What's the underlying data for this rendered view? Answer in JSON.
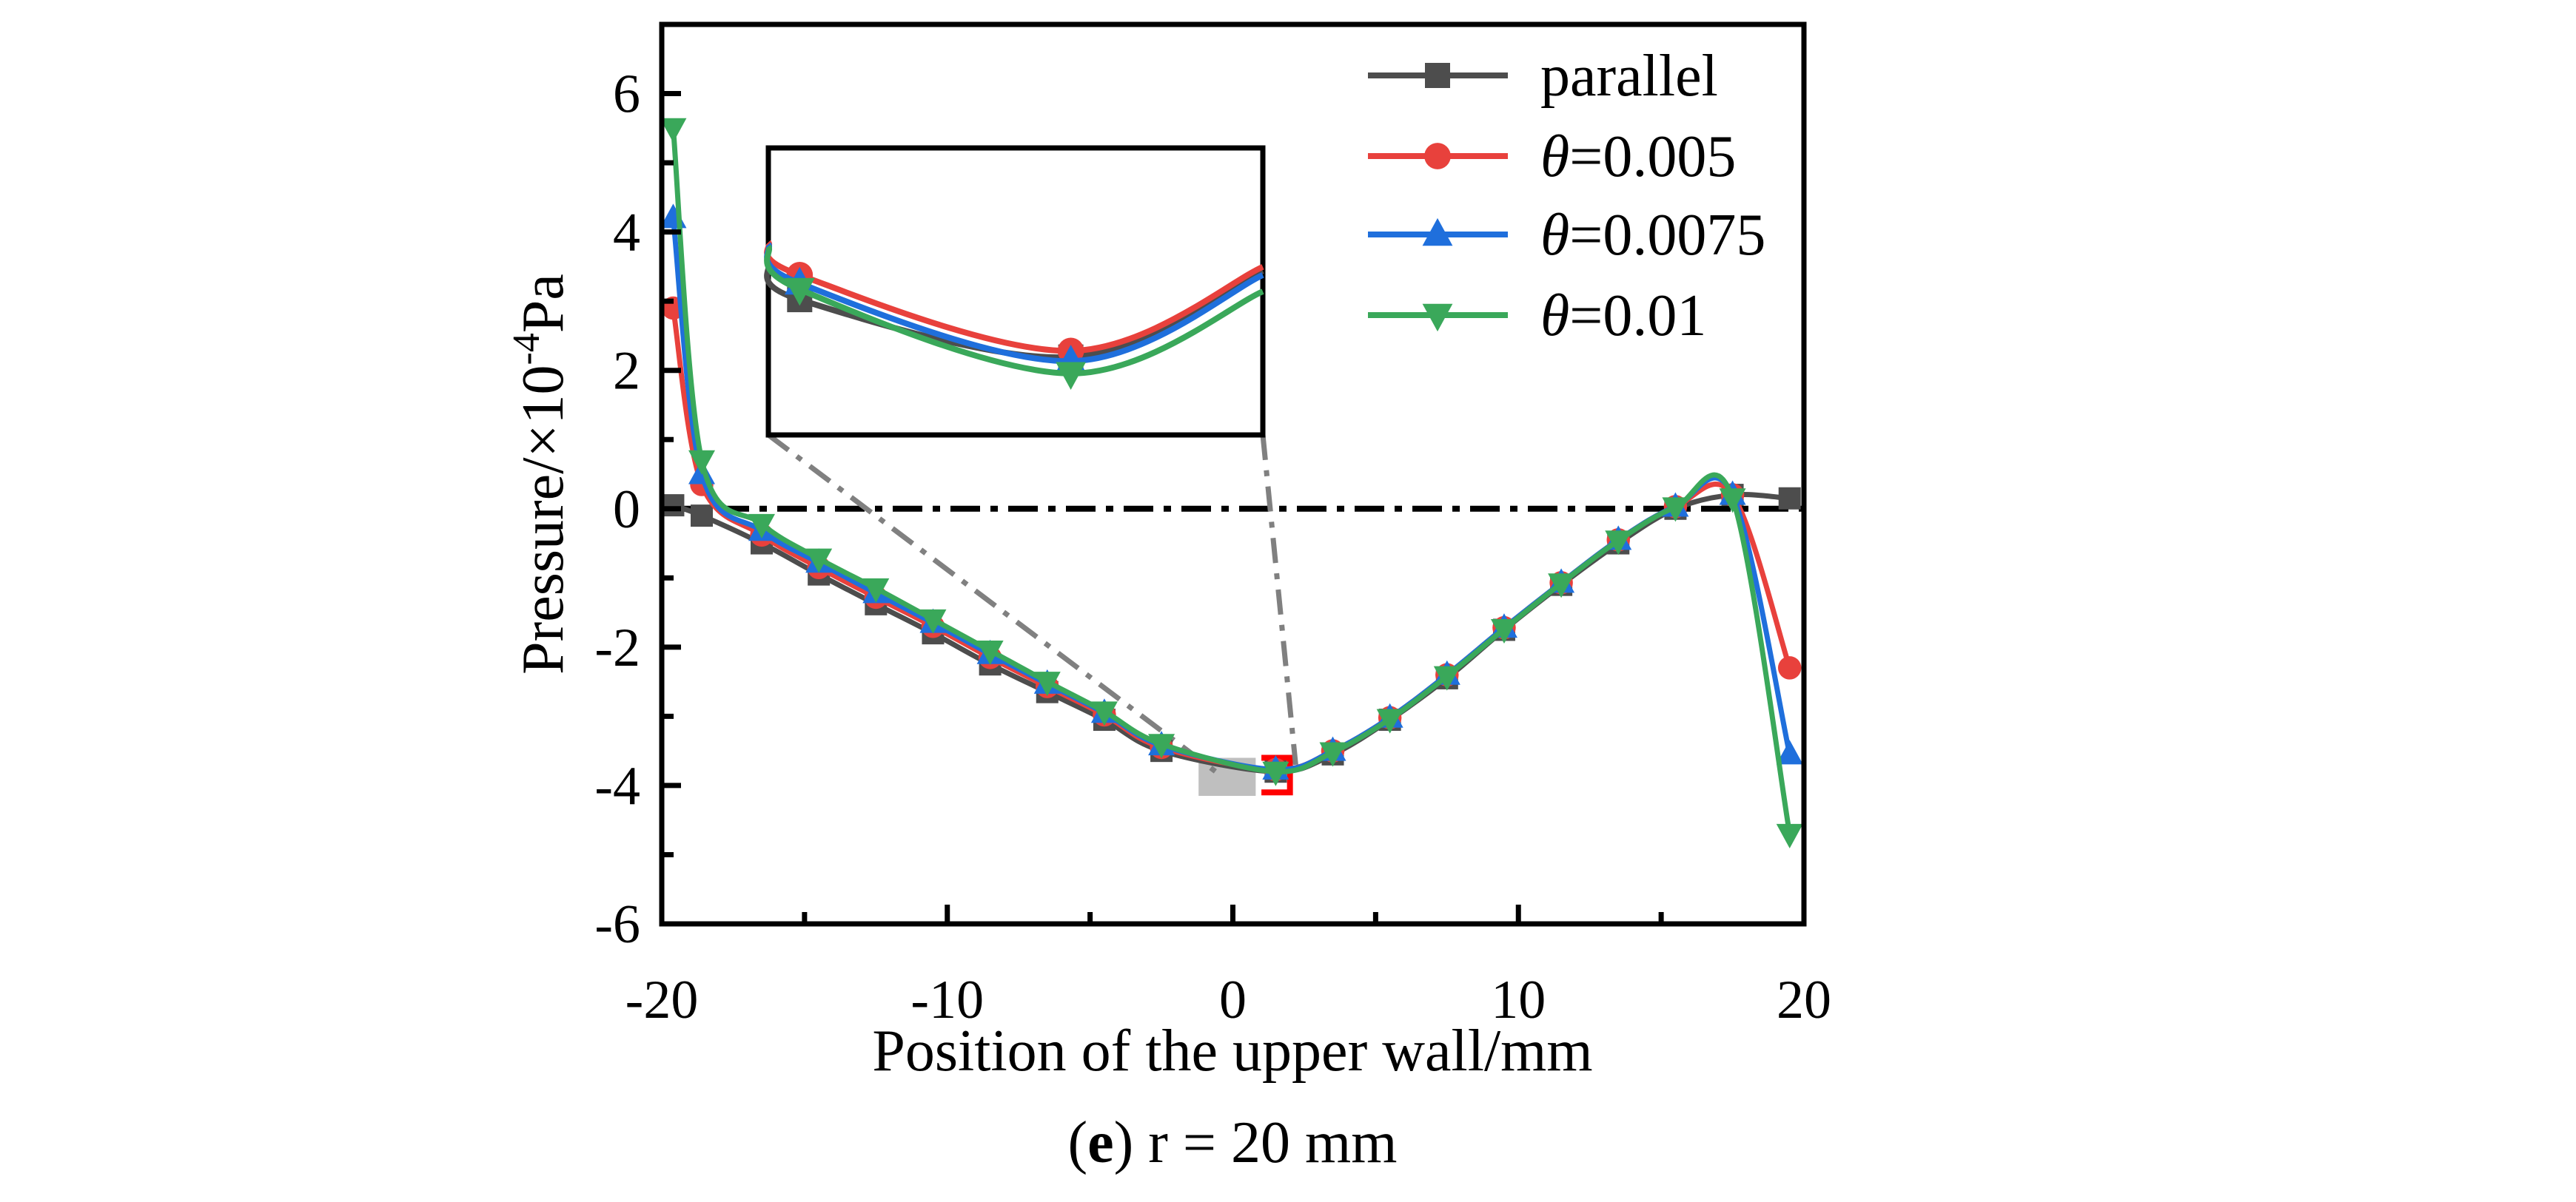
{
  "chart_data": {
    "type": "line",
    "title": "",
    "caption_label": "e",
    "caption_text": " r = 20 mm",
    "caption_open": "(",
    "caption_close": ")",
    "xlabel": "Position of the upper wall/mm",
    "ylabel_main": "Pressure/×10",
    "ylabel_exp": "-4",
    "ylabel_unit": "Pa",
    "xlim": [
      -20,
      20
    ],
    "ylim": [
      -6,
      7
    ],
    "xticks": [
      -20,
      -10,
      0,
      10,
      20
    ],
    "xtick_labels": [
      "-20",
      "-10",
      "0",
      "10",
      "20"
    ],
    "yticks": [
      -6,
      -4,
      -2,
      0,
      2,
      4,
      6
    ],
    "ytick_labels": [
      "-6",
      "-4",
      "-2",
      "0",
      "2",
      "4",
      "6"
    ],
    "legend_position": "top-right",
    "reference_line": {
      "y": 0,
      "style": "dash-dot",
      "color": "#000000"
    },
    "x": [
      -19.6,
      -18.6,
      -16.5,
      -14.5,
      -12.5,
      -10.5,
      -8.5,
      -6.5,
      -4.5,
      -2.5,
      1.5,
      3.5,
      5.5,
      7.5,
      9.5,
      11.5,
      13.5,
      15.5,
      17.5,
      19.5
    ],
    "series": [
      {
        "name": "parallel",
        "symbol": "",
        "value_label": "parallel",
        "color": "#4d4d4d",
        "marker": "square",
        "values": [
          0.05,
          -0.1,
          -0.5,
          -0.95,
          -1.38,
          -1.8,
          -2.25,
          -2.65,
          -3.05,
          -3.5,
          -3.8,
          -3.55,
          -3.05,
          -2.45,
          -1.75,
          -1.1,
          -0.5,
          0.0,
          0.2,
          0.15
        ]
      },
      {
        "name": "θ=0.005",
        "symbol": "θ",
        "value_label": "=0.005",
        "color": "#e8413c",
        "marker": "circle",
        "values": [
          2.9,
          0.35,
          -0.38,
          -0.85,
          -1.28,
          -1.7,
          -2.15,
          -2.57,
          -2.98,
          -3.45,
          -3.77,
          -3.5,
          -3.02,
          -2.4,
          -1.72,
          -1.07,
          -0.45,
          0.03,
          0.2,
          -2.3
        ]
      },
      {
        "name": "θ=0.0075",
        "symbol": "θ",
        "value_label": "=0.0075",
        "color": "#1f6fdc",
        "marker": "triangle-up",
        "values": [
          4.2,
          0.5,
          -0.32,
          -0.78,
          -1.22,
          -1.65,
          -2.1,
          -2.53,
          -2.95,
          -3.42,
          -3.77,
          -3.5,
          -3.02,
          -2.4,
          -1.72,
          -1.07,
          -0.45,
          0.03,
          0.2,
          -3.55
        ]
      },
      {
        "name": "θ=0.01",
        "symbol": "θ",
        "value_label": "=0.01",
        "color": "#3aa85a",
        "marker": "triangle-down",
        "values": [
          5.5,
          0.7,
          -0.22,
          -0.72,
          -1.15,
          -1.6,
          -2.05,
          -2.5,
          -2.93,
          -3.4,
          -3.8,
          -3.52,
          -3.04,
          -2.42,
          -1.74,
          -1.08,
          -0.46,
          0.02,
          0.15,
          -4.7
        ]
      }
    ],
    "zoom_region": {
      "x": [
        -1.2,
        0.8
      ],
      "y": [
        -4.15,
        -3.6
      ],
      "color": "#bfbfbf"
    },
    "zoom_bracket": {
      "x": [
        1.0,
        2.0
      ],
      "y": [
        -4.1,
        -3.6
      ],
      "color": "#ff0000"
    },
    "inset": {
      "xlim": [
        1.2,
        1.8
      ],
      "ylim": [
        -3.86,
        -3.72
      ],
      "x": [
        1.2,
        1.238,
        1.567,
        1.8
      ],
      "marker_x_index": [
        1,
        2
      ],
      "series": [
        {
          "name": "parallel",
          "values": [
            -3.776,
            -3.794,
            -3.822,
            -3.78
          ]
        },
        {
          "name": "θ=0.005",
          "values": [
            -3.766,
            -3.782,
            -3.819,
            -3.778
          ]
        },
        {
          "name": "θ=0.0075",
          "values": [
            -3.767,
            -3.786,
            -3.824,
            -3.782
          ]
        },
        {
          "name": "θ=0.01",
          "values": [
            -3.768,
            -3.789,
            -3.83,
            -3.79
          ]
        }
      ]
    }
  }
}
